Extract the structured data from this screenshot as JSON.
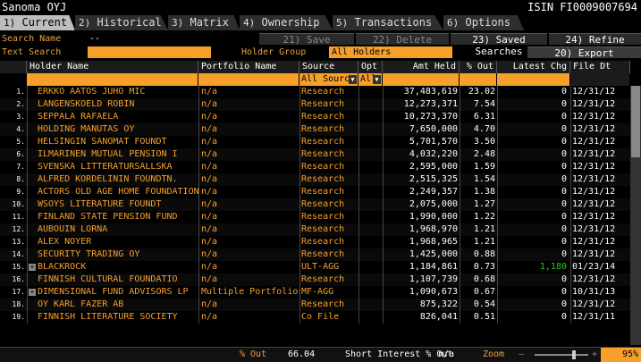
{
  "header": {
    "title": "Sanoma OYJ",
    "isin": "ISIN FI0009007694"
  },
  "tabs": [
    {
      "num": "1)",
      "label": "Current"
    },
    {
      "num": "2)",
      "label": "Historical"
    },
    {
      "num": "3)",
      "label": "Matrix"
    },
    {
      "num": "4)",
      "label": "Ownership"
    },
    {
      "num": "5)",
      "label": "Transactions"
    },
    {
      "num": "6)",
      "label": "Options"
    }
  ],
  "search": {
    "name_label": "Search Name",
    "name_value": "--",
    "text_label": "Text Search",
    "holder_group_label": "Holder Group",
    "holder_group_value": "All Holders"
  },
  "actions": {
    "save": "21) Save",
    "delete": "22) Delete",
    "saved_searches": "23) Saved Searches",
    "refine": "24) Refine Search",
    "export": "20) Export"
  },
  "columns": {
    "holder": "Holder Name",
    "portfolio": "Portfolio Name",
    "source": "Source",
    "opt": "Opt",
    "amt": "Amt Held",
    "out": "% Out",
    "chg": "Latest Chg",
    "dt": "File Dt"
  },
  "filters": {
    "source": "All Source",
    "opt": "All"
  },
  "rows": [
    {
      "idx": "1.",
      "name": "ERKKO AATOS JUHO MIC",
      "port": "n/a",
      "src": "Research",
      "amt": "37,483,619",
      "out": "23.02",
      "chg": "0",
      "dt": "12/31/12",
      "plus": false
    },
    {
      "idx": "2.",
      "name": "LANGENSKOELD ROBIN",
      "port": "n/a",
      "src": "Research",
      "amt": "12,273,371",
      "out": "7.54",
      "chg": "0",
      "dt": "12/31/12",
      "plus": false
    },
    {
      "idx": "3.",
      "name": "SEPPALA RAFAELA",
      "port": "n/a",
      "src": "Research",
      "amt": "10,273,370",
      "out": "6.31",
      "chg": "0",
      "dt": "12/31/12",
      "plus": false
    },
    {
      "idx": "4.",
      "name": "HOLDING MANUTAS OY",
      "port": "n/a",
      "src": "Research",
      "amt": "7,650,000",
      "out": "4.70",
      "chg": "0",
      "dt": "12/31/12",
      "plus": false
    },
    {
      "idx": "5.",
      "name": "HELSINGIN SANOMAT FOUNDT",
      "port": "n/a",
      "src": "Research",
      "amt": "5,701,570",
      "out": "3.50",
      "chg": "0",
      "dt": "12/31/12",
      "plus": false
    },
    {
      "idx": "6.",
      "name": "ILMARINEN MUTUAL PENSION I",
      "port": "n/a",
      "src": "Research",
      "amt": "4,032,220",
      "out": "2.48",
      "chg": "0",
      "dt": "12/31/12",
      "plus": false
    },
    {
      "idx": "7.",
      "name": "SVENSKA LITTERATURSALLSKA",
      "port": "n/a",
      "src": "Research",
      "amt": "2,595,000",
      "out": "1.59",
      "chg": "0",
      "dt": "12/31/12",
      "plus": false
    },
    {
      "idx": "8.",
      "name": "ALFRED KORDELININ FOUNDTN.",
      "port": "n/a",
      "src": "Research",
      "amt": "2,515,325",
      "out": "1.54",
      "chg": "0",
      "dt": "12/31/12",
      "plus": false
    },
    {
      "idx": "9.",
      "name": "ACTORS OLD AGE HOME FOUNDATION",
      "port": "n/a",
      "src": "Research",
      "amt": "2,249,357",
      "out": "1.38",
      "chg": "0",
      "dt": "12/31/12",
      "plus": false
    },
    {
      "idx": "10.",
      "name": "WSOYS LITERATURE FOUNDT",
      "port": "n/a",
      "src": "Research",
      "amt": "2,075,000",
      "out": "1.27",
      "chg": "0",
      "dt": "12/31/12",
      "plus": false
    },
    {
      "idx": "11.",
      "name": "FINLAND STATE PENSION FUND",
      "port": "n/a",
      "src": "Research",
      "amt": "1,990,000",
      "out": "1.22",
      "chg": "0",
      "dt": "12/31/12",
      "plus": false
    },
    {
      "idx": "12.",
      "name": "AUBOUIN LORNA",
      "port": "n/a",
      "src": "Research",
      "amt": "1,968,970",
      "out": "1.21",
      "chg": "0",
      "dt": "12/31/12",
      "plus": false
    },
    {
      "idx": "13.",
      "name": "ALEX NOYER",
      "port": "n/a",
      "src": "Research",
      "amt": "1,968,965",
      "out": "1.21",
      "chg": "0",
      "dt": "12/31/12",
      "plus": false
    },
    {
      "idx": "14.",
      "name": "SECURITY TRADING OY",
      "port": "n/a",
      "src": "Research",
      "amt": "1,425,000",
      "out": "0.88",
      "chg": "0",
      "dt": "12/31/12",
      "plus": false
    },
    {
      "idx": "15.",
      "name": "BLACKROCK",
      "port": "n/a",
      "src": "ULT-AGG",
      "amt": "1,184,861",
      "out": "0.73",
      "chg": "1,180",
      "dt": "01/23/14",
      "plus": true,
      "chg_green": true
    },
    {
      "idx": "16.",
      "name": "FINNISH CULTURAL FOUNDATIO",
      "port": "n/a",
      "src": "Research",
      "amt": "1,107,739",
      "out": "0.68",
      "chg": "0",
      "dt": "12/31/12",
      "plus": false
    },
    {
      "idx": "17.",
      "name": "DIMENSIONAL FUND ADVISORS LP",
      "port": "Multiple Portfolios",
      "src": "MF-AGG",
      "amt": "1,090,673",
      "out": "0.67",
      "chg": "0",
      "dt": "10/31/13",
      "plus": true
    },
    {
      "idx": "18.",
      "name": "OY KARL FAZER AB",
      "port": "n/a",
      "src": "Research",
      "amt": "875,322",
      "out": "0.54",
      "chg": "0",
      "dt": "12/31/12",
      "plus": false
    },
    {
      "idx": "19.",
      "name": "FINNISH LITERATURE SOCIETY",
      "port": "n/a",
      "src": "Co File",
      "amt": "826,041",
      "out": "0.51",
      "chg": "0",
      "dt": "12/31/11",
      "plus": false
    }
  ],
  "footer": {
    "out_label": "% Out",
    "out_value": "66.04",
    "short_label": "Short Interest % Out",
    "short_value": "n/a",
    "zoom_label": "Zoom",
    "zoom_value": "95%"
  },
  "colors": {
    "accent": "#f6a02a",
    "green": "#1fd11f"
  }
}
